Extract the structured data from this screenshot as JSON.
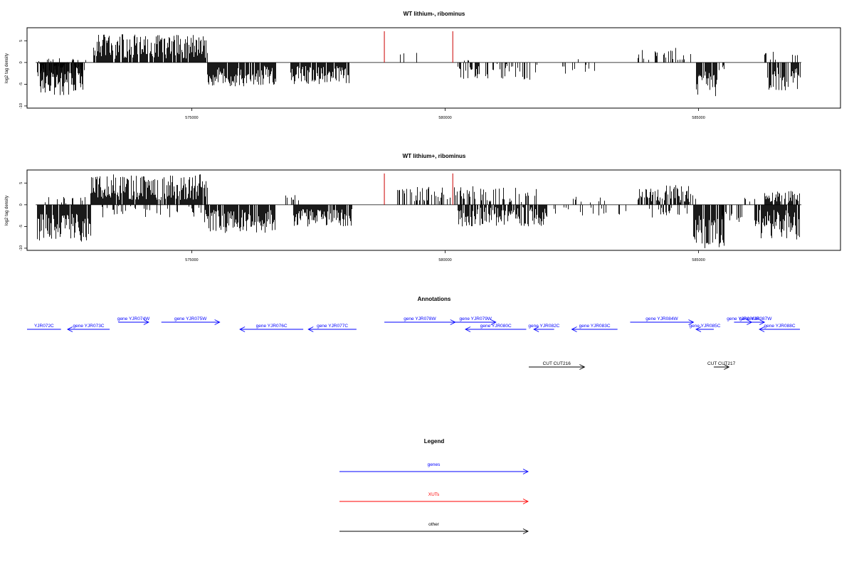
{
  "chart_data": [
    {
      "type": "bar",
      "title": "WT lithium-, ribominus",
      "xlabel": "",
      "ylabel": "log2 tag density",
      "xlim": [
        571750,
        587800
      ],
      "ylim": [
        -10.5,
        8
      ],
      "xticks": [
        575000,
        580000,
        585000
      ],
      "xtick_labels": [
        "575000",
        "580000",
        "585000"
      ],
      "yticks": [
        -10,
        -5,
        0,
        5
      ],
      "ytick_labels": [
        "-10",
        "-5",
        "0",
        "5"
      ],
      "grid": false,
      "colors": {
        "bars": "#000000",
        "markers": "#cc0000"
      },
      "markers": [
        {
          "x": 578800,
          "y": 7.2
        },
        {
          "x": 580150,
          "y": 7.2
        }
      ],
      "segments": [
        {
          "x0": 571950,
          "x1": 572900,
          "min": -3.5,
          "max": 1.0,
          "density": 0.8,
          "seed": 11
        },
        {
          "x0": 572000,
          "x1": 572850,
          "min": -7.5,
          "max": -2.0,
          "density": 0.9,
          "seed": 12
        },
        {
          "x0": 573050,
          "x1": 575300,
          "min": 0.8,
          "max": 6.5,
          "density": 0.9,
          "seed": 13
        },
        {
          "x0": 575300,
          "x1": 576650,
          "min": -5.5,
          "max": -0.5,
          "density": 0.9,
          "seed": 14
        },
        {
          "x0": 576950,
          "x1": 578100,
          "min": -5.0,
          "max": -0.8,
          "density": 0.9,
          "seed": 15
        },
        {
          "x0": 579050,
          "x1": 580050,
          "min": 0.5,
          "max": 2.8,
          "density": 0.06,
          "seed": 16
        },
        {
          "x0": 580250,
          "x1": 581800,
          "min": -4.0,
          "max": -0.3,
          "density": 0.35,
          "seed": 17
        },
        {
          "x0": 580300,
          "x1": 580500,
          "min": 0.3,
          "max": 1.5,
          "density": 0.1,
          "seed": 18
        },
        {
          "x0": 582300,
          "x1": 583000,
          "min": -3.0,
          "max": -0.5,
          "density": 0.15,
          "seed": 19
        },
        {
          "x0": 582600,
          "x1": 582650,
          "min": 0.5,
          "max": 1.0,
          "density": 0.2,
          "seed": 20
        },
        {
          "x0": 583800,
          "x1": 584900,
          "min": 0.5,
          "max": 3.5,
          "density": 0.3,
          "seed": 21
        },
        {
          "x0": 584950,
          "x1": 585350,
          "min": -7.8,
          "max": -2.0,
          "density": 0.9,
          "seed": 22
        },
        {
          "x0": 585400,
          "x1": 585500,
          "min": -2.5,
          "max": -0.5,
          "density": 0.3,
          "seed": 23
        },
        {
          "x0": 586300,
          "x1": 586550,
          "min": 0.5,
          "max": 3.4,
          "density": 0.4,
          "seed": 24
        },
        {
          "x0": 586350,
          "x1": 587000,
          "min": -6.5,
          "max": -1.0,
          "density": 0.85,
          "seed": 25
        },
        {
          "x0": 586850,
          "x1": 586950,
          "min": 0.5,
          "max": 2.5,
          "density": 0.3,
          "seed": 26
        }
      ]
    },
    {
      "type": "bar",
      "title": "WT lithium+, ribominus",
      "xlabel": "",
      "ylabel": "log2 tag density",
      "xlim": [
        571750,
        587800
      ],
      "ylim": [
        -10.5,
        8
      ],
      "xticks": [
        575000,
        580000,
        585000
      ],
      "xtick_labels": [
        "575000",
        "580000",
        "585000"
      ],
      "yticks": [
        -10,
        -5,
        0,
        5
      ],
      "ytick_labels": [
        "-10",
        "-5",
        "0",
        "5"
      ],
      "grid": false,
      "colors": {
        "bars": "#000000",
        "markers": "#cc0000"
      },
      "markers": [
        {
          "x": 578800,
          "y": 7.2
        },
        {
          "x": 580150,
          "y": 7.2
        }
      ],
      "segments": [
        {
          "x0": 571950,
          "x1": 573000,
          "min": -8.5,
          "max": -2.0,
          "density": 0.9,
          "seed": 31
        },
        {
          "x0": 572100,
          "x1": 572900,
          "min": 0.3,
          "max": 1.8,
          "density": 0.25,
          "seed": 32
        },
        {
          "x0": 573000,
          "x1": 575300,
          "min": 1.0,
          "max": 7.0,
          "density": 0.9,
          "seed": 33
        },
        {
          "x0": 573200,
          "x1": 575200,
          "min": -3.0,
          "max": -0.3,
          "density": 0.2,
          "seed": 34
        },
        {
          "x0": 575250,
          "x1": 576650,
          "min": -6.5,
          "max": -1.0,
          "density": 0.9,
          "seed": 35
        },
        {
          "x0": 576850,
          "x1": 577100,
          "min": 0.5,
          "max": 3.5,
          "density": 0.4,
          "seed": 36
        },
        {
          "x0": 577000,
          "x1": 578150,
          "min": -5.0,
          "max": -1.0,
          "density": 0.9,
          "seed": 37
        },
        {
          "x0": 579050,
          "x1": 580600,
          "min": 0.5,
          "max": 4.5,
          "density": 0.45,
          "seed": 38
        },
        {
          "x0": 580250,
          "x1": 582000,
          "min": -5.0,
          "max": -0.5,
          "density": 0.75,
          "seed": 39
        },
        {
          "x0": 580700,
          "x1": 581800,
          "min": 0.5,
          "max": 4.0,
          "density": 0.35,
          "seed": 40
        },
        {
          "x0": 582100,
          "x1": 583600,
          "min": -2.5,
          "max": -0.3,
          "density": 0.2,
          "seed": 41
        },
        {
          "x0": 582500,
          "x1": 583200,
          "min": 0.5,
          "max": 2.0,
          "density": 0.15,
          "seed": 42
        },
        {
          "x0": 583800,
          "x1": 584950,
          "min": 0.5,
          "max": 4.5,
          "density": 0.7,
          "seed": 43
        },
        {
          "x0": 583900,
          "x1": 584800,
          "min": -3.0,
          "max": -0.3,
          "density": 0.25,
          "seed": 44
        },
        {
          "x0": 584900,
          "x1": 585500,
          "min": -10.0,
          "max": -2.5,
          "density": 0.9,
          "seed": 45
        },
        {
          "x0": 585450,
          "x1": 585850,
          "min": -4.0,
          "max": -0.5,
          "density": 0.4,
          "seed": 46
        },
        {
          "x0": 585900,
          "x1": 586100,
          "min": 0.5,
          "max": 2.5,
          "density": 0.3,
          "seed": 47
        },
        {
          "x0": 586100,
          "x1": 587000,
          "min": -8.0,
          "max": -1.0,
          "density": 0.85,
          "seed": 48
        },
        {
          "x0": 586300,
          "x1": 587000,
          "min": 0.5,
          "max": 3.5,
          "density": 0.6,
          "seed": 49
        }
      ]
    }
  ],
  "annotations": {
    "title": "Annotations",
    "xlim": [
      571750,
      587800
    ],
    "genes_color": "#0000ff",
    "other_color": "#000000",
    "features": [
      {
        "label": "YJR072C",
        "start": 571750,
        "end": 572420,
        "dir": "none",
        "row": 1,
        "color": "#0000ff"
      },
      {
        "label": "gene YJR073C",
        "start": 572550,
        "end": 573380,
        "dir": "left",
        "row": 1,
        "color": "#0000ff"
      },
      {
        "label": "gene YJR074W",
        "start": 573550,
        "end": 574150,
        "dir": "right",
        "row": 0,
        "color": "#0000ff"
      },
      {
        "label": "gene YJR075W",
        "start": 574400,
        "end": 575550,
        "dir": "right",
        "row": 0,
        "color": "#0000ff"
      },
      {
        "label": "gene YJR076C",
        "start": 575950,
        "end": 577200,
        "dir": "left",
        "row": 1,
        "color": "#0000ff"
      },
      {
        "label": "gene YJR077C",
        "start": 577300,
        "end": 578250,
        "dir": "left",
        "row": 1,
        "color": "#0000ff"
      },
      {
        "label": "gene YJR078W",
        "start": 578800,
        "end": 580200,
        "dir": "right",
        "row": 0,
        "color": "#0000ff"
      },
      {
        "label": "gene YJR079W",
        "start": 580200,
        "end": 581000,
        "dir": "right",
        "row": 0,
        "color": "#0000ff"
      },
      {
        "label": "gene YJR080C",
        "start": 580400,
        "end": 581600,
        "dir": "left",
        "row": 1,
        "color": "#0000ff"
      },
      {
        "label": "gene YJR082C",
        "start": 581750,
        "end": 582150,
        "dir": "left",
        "row": 1,
        "color": "#0000ff"
      },
      {
        "label": "gene YJR083C",
        "start": 582500,
        "end": 583400,
        "dir": "left",
        "row": 1,
        "color": "#0000ff"
      },
      {
        "label": "gene YJR084W",
        "start": 583650,
        "end": 584900,
        "dir": "right",
        "row": 0,
        "color": "#0000ff"
      },
      {
        "label": "gene YJR085C",
        "start": 584950,
        "end": 585300,
        "dir": "left",
        "row": 1,
        "color": "#0000ff"
      },
      {
        "label": "gene YJR086W",
        "start": 585700,
        "end": 586050,
        "dir": "right",
        "row": 0,
        "color": "#0000ff"
      },
      {
        "label": "gene YJR087W",
        "start": 585950,
        "end": 586300,
        "dir": "right",
        "row": 0,
        "color": "#0000ff"
      },
      {
        "label": "gene YJR088C",
        "start": 586200,
        "end": 587000,
        "dir": "left",
        "row": 1,
        "color": "#0000ff"
      },
      {
        "label": "CUT CUT216",
        "start": 581650,
        "end": 582750,
        "dir": "right",
        "row": 2,
        "color": "#000000"
      },
      {
        "label": "CUT CUT217",
        "start": 585300,
        "end": 585600,
        "dir": "right",
        "row": 2,
        "color": "#000000"
      }
    ]
  },
  "legend": {
    "title": "Legend",
    "entries": [
      {
        "label": "genes",
        "color": "#0000ff"
      },
      {
        "label": "XUTs",
        "color": "#ff0000"
      },
      {
        "label": "other",
        "color": "#000000"
      }
    ]
  }
}
